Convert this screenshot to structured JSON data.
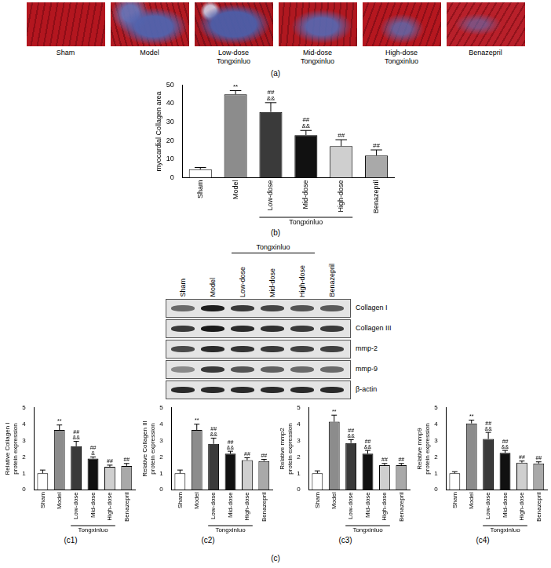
{
  "chart_data": [
    {
      "type": "bar",
      "panel_label": "(b)",
      "y_label": [
        "myocardial Collagen area"
      ],
      "categories": [
        "Sham",
        "Model",
        "Low-dose",
        "Mid-dose",
        "High-dose",
        "Benazepril"
      ],
      "values": [
        4.5,
        45,
        35.5,
        23,
        17,
        12
      ],
      "errors": [
        1,
        2,
        5,
        2.5,
        3.5,
        3
      ],
      "annotations": [
        [],
        [
          "**"
        ],
        [
          "##",
          "&&"
        ],
        [
          "##",
          "&&"
        ],
        [
          "##"
        ],
        [
          "##"
        ]
      ],
      "category_group": {
        "label": "Tongxinluo",
        "categories": [
          "Low-dose",
          "Mid-dose",
          "High-dose"
        ]
      },
      "colors": [
        "#ffffff",
        "#8c8c8c",
        "#3a3a3a",
        "#111111",
        "#cfcfcf",
        "#a9a9a9"
      ],
      "ylim": [
        0,
        50
      ],
      "yticks": [
        0,
        10,
        20,
        30,
        40,
        50
      ],
      "grid": false
    },
    {
      "type": "bar",
      "panel_label": "(c1)",
      "y_label": [
        "Relative Collagen I",
        "protein expression"
      ],
      "categories": [
        "Sham",
        "Model",
        "Low-dose",
        "Mid-dose",
        "High-dose",
        "Benazepril"
      ],
      "values": [
        1.0,
        3.65,
        2.65,
        1.9,
        1.4,
        1.45
      ],
      "errors": [
        0.2,
        0.3,
        0.3,
        0.1,
        0.1,
        0.15
      ],
      "annotations": [
        [],
        [
          "**"
        ],
        [
          "##",
          "&&"
        ],
        [
          "##",
          "&"
        ],
        [
          "##"
        ],
        [
          "##"
        ]
      ],
      "category_group": {
        "label": "Tongxinluo",
        "categories": [
          "Low-dose",
          "Mid-dose",
          "High-dose"
        ]
      },
      "colors": [
        "#ffffff",
        "#8c8c8c",
        "#3a3a3a",
        "#111111",
        "#cfcfcf",
        "#a9a9a9"
      ],
      "ylim": [
        0,
        5
      ],
      "yticks": [
        0,
        1,
        2,
        3,
        4,
        5
      ],
      "grid": false
    },
    {
      "type": "bar",
      "panel_label": "(c2)",
      "y_label": [
        "Relative Collagen III",
        "protein expression"
      ],
      "categories": [
        "Sham",
        "Model",
        "Low-dose",
        "Mid-dose",
        "High-dose",
        "Benazepril"
      ],
      "values": [
        1.0,
        3.65,
        2.8,
        2.2,
        1.8,
        1.75
      ],
      "errors": [
        0.2,
        0.35,
        0.35,
        0.15,
        0.15,
        0.1
      ],
      "annotations": [
        [],
        [
          "**"
        ],
        [
          "##",
          "&&"
        ],
        [
          "##",
          "&&"
        ],
        [
          "##"
        ],
        [
          "##"
        ]
      ],
      "category_group": {
        "label": "Tongxinluo",
        "categories": [
          "Low-dose",
          "Mid-dose",
          "High-dose"
        ]
      },
      "colors": [
        "#ffffff",
        "#8c8c8c",
        "#3a3a3a",
        "#111111",
        "#cfcfcf",
        "#a9a9a9"
      ],
      "ylim": [
        0,
        5
      ],
      "yticks": [
        0,
        1,
        2,
        3,
        4,
        5
      ],
      "grid": false
    },
    {
      "type": "bar",
      "panel_label": "(c3)",
      "y_label": [
        "Relative mmp2",
        "protein expression"
      ],
      "categories": [
        "Sham",
        "Model",
        "Low-dose",
        "Mid-dose",
        "High-dose",
        "Benazepril"
      ],
      "values": [
        1.0,
        4.15,
        2.85,
        2.2,
        1.5,
        1.5
      ],
      "errors": [
        0.15,
        0.4,
        0.2,
        0.2,
        0.1,
        0.1
      ],
      "annotations": [
        [],
        [
          "**"
        ],
        [
          "##",
          "&&"
        ],
        [
          "##",
          "&&"
        ],
        [
          "##"
        ],
        [
          "##"
        ]
      ],
      "category_group": {
        "label": "Tongxinluo",
        "categories": [
          "Low-dose",
          "Mid-dose",
          "High-dose"
        ]
      },
      "colors": [
        "#ffffff",
        "#8c8c8c",
        "#3a3a3a",
        "#111111",
        "#cfcfcf",
        "#a9a9a9"
      ],
      "ylim": [
        0,
        5
      ],
      "yticks": [
        0,
        1,
        2,
        3,
        4,
        5
      ],
      "grid": false
    },
    {
      "type": "bar",
      "panel_label": "(c4)",
      "y_label": [
        "Relative mmp9",
        "protein expression"
      ],
      "categories": [
        "Sham",
        "Model",
        "Low-dose",
        "Mid-dose",
        "High-dose",
        "Benazepril"
      ],
      "values": [
        1.0,
        4.05,
        3.1,
        2.25,
        1.65,
        1.6
      ],
      "errors": [
        0.1,
        0.2,
        0.4,
        0.15,
        0.1,
        0.1
      ],
      "annotations": [
        [],
        [
          "**"
        ],
        [
          "##",
          "&&"
        ],
        [
          "##",
          "&&"
        ],
        [
          "##"
        ],
        [
          "##"
        ]
      ],
      "category_group": {
        "label": "Tongxinluo",
        "categories": [
          "Low-dose",
          "Mid-dose",
          "High-dose"
        ]
      },
      "colors": [
        "#ffffff",
        "#8c8c8c",
        "#3a3a3a",
        "#111111",
        "#cfcfcf",
        "#a9a9a9"
      ],
      "ylim": [
        0,
        5
      ],
      "yticks": [
        0,
        1,
        2,
        3,
        4,
        5
      ],
      "grid": false
    }
  ],
  "histology": {
    "panel_label": "(a)",
    "images": [
      "Sham",
      "Model",
      "Low-dose Tongxinluo",
      "Mid-dose Tongxinluo",
      "High-dose Tongxinluo",
      "Benazepril"
    ]
  },
  "blot": {
    "panel_label": "(c)",
    "lanes": [
      "Sham",
      "Model",
      "Low-dose",
      "Mid-dose",
      "High-dose",
      "Benazepril"
    ],
    "group": {
      "label": "Tongxinluo",
      "lanes": [
        "Low-dose",
        "Mid-dose",
        "High-dose"
      ]
    },
    "bands": [
      "Collagen I",
      "Collagen III",
      "mmp-2",
      "mmp-9",
      "β-actin"
    ]
  }
}
